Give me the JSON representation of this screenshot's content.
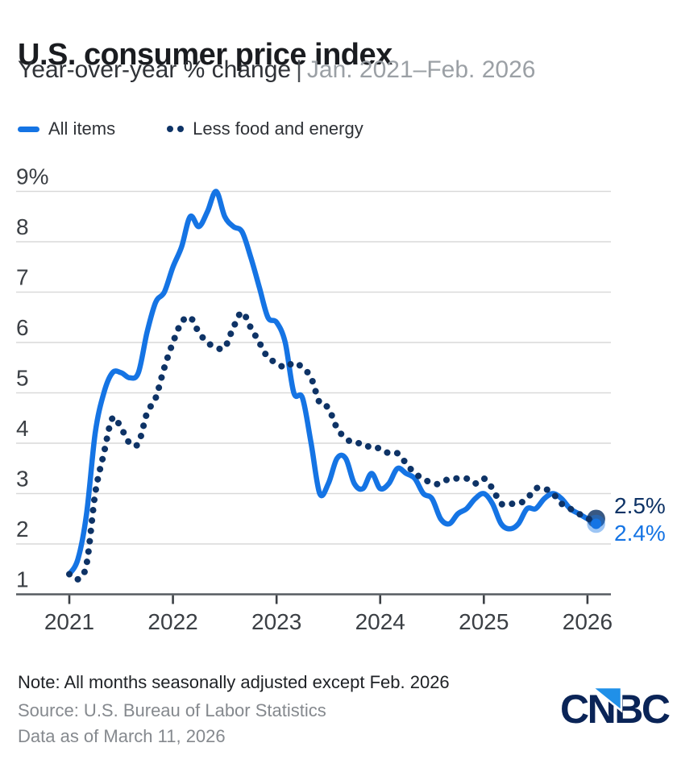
{
  "header": {
    "title": "U.S. consumer price index",
    "subtitle_left": "Year-over-year % change",
    "separator": "|",
    "date_range": "Jan. 2021–Feb. 2026"
  },
  "legend": {
    "items": [
      {
        "label": "All items",
        "style": "solid",
        "color": "#1574e4"
      },
      {
        "label": "Less food and energy",
        "style": "dotted",
        "color": "#0e3366"
      }
    ]
  },
  "chart_data": {
    "type": "line",
    "title": "U.S. consumer price index",
    "ylabel": "Year-over-year % change",
    "x_start": "Jan. 2021",
    "x_end": "Feb. 2026",
    "x_frequency": "monthly",
    "ylim": [
      1,
      9
    ],
    "yticks": [
      9,
      8,
      7,
      6,
      5,
      4,
      3,
      2,
      1
    ],
    "ytick_labels": [
      "9%",
      "8",
      "7",
      "6",
      "5",
      "4",
      "3",
      "2",
      "1"
    ],
    "xtick_labels": [
      "2021",
      "2022",
      "2023",
      "2024",
      "2025",
      "2026"
    ],
    "grid": true,
    "legend_position": "top-left",
    "series": [
      {
        "name": "Less food and energy",
        "style": "dotted",
        "color": "#0e3366",
        "end_label": "2.5%",
        "end_value": 2.5,
        "values": [
          1.4,
          1.3,
          1.6,
          3.0,
          3.8,
          4.5,
          4.3,
          4.0,
          4.0,
          4.6,
          4.9,
          5.5,
          6.0,
          6.4,
          6.5,
          6.2,
          6.0,
          5.9,
          5.9,
          6.3,
          6.6,
          6.3,
          6.0,
          5.7,
          5.6,
          5.5,
          5.6,
          5.5,
          5.3,
          4.8,
          4.7,
          4.3,
          4.1,
          4.0,
          4.0,
          3.9,
          3.9,
          3.8,
          3.8,
          3.6,
          3.4,
          3.3,
          3.2,
          3.2,
          3.3,
          3.3,
          3.3,
          3.2,
          3.3,
          3.1,
          2.8,
          2.8,
          2.8,
          2.9,
          3.1,
          3.1,
          3.0,
          2.8,
          2.7,
          2.6,
          2.5,
          2.5
        ]
      },
      {
        "name": "All items",
        "style": "solid",
        "color": "#1574e4",
        "end_label": "2.4%",
        "end_value": 2.4,
        "values": [
          1.4,
          1.7,
          2.6,
          4.2,
          5.0,
          5.4,
          5.4,
          5.3,
          5.4,
          6.2,
          6.8,
          7.0,
          7.5,
          7.9,
          8.5,
          8.3,
          8.6,
          9.0,
          8.5,
          8.3,
          8.2,
          7.7,
          7.1,
          6.5,
          6.4,
          6.0,
          5.0,
          4.9,
          4.0,
          3.0,
          3.2,
          3.7,
          3.7,
          3.2,
          3.1,
          3.4,
          3.1,
          3.2,
          3.5,
          3.4,
          3.3,
          3.0,
          2.9,
          2.5,
          2.4,
          2.6,
          2.7,
          2.9,
          3.0,
          2.8,
          2.4,
          2.3,
          2.4,
          2.7,
          2.7,
          2.9,
          3.0,
          2.9,
          2.7,
          2.6,
          2.5,
          2.4
        ]
      }
    ]
  },
  "footer": {
    "note": "Note: All months seasonally adjusted except Feb. 2026",
    "source": "Source: U.S. Bureau of Labor Statistics",
    "data_as_of": "Data as of March 11, 2026",
    "logo_text": "CNBC"
  },
  "colors": {
    "accent_blue": "#1574e4",
    "navy": "#0e3366",
    "halo_blue": "rgba(21,116,228,0.42)",
    "grid": "#d9d9d9",
    "axis": "#565b60",
    "tick": "#3c4045",
    "tick_label": "#3b3f44",
    "logo_navy": "#0a2457",
    "logo_blue": "#2090e8"
  }
}
